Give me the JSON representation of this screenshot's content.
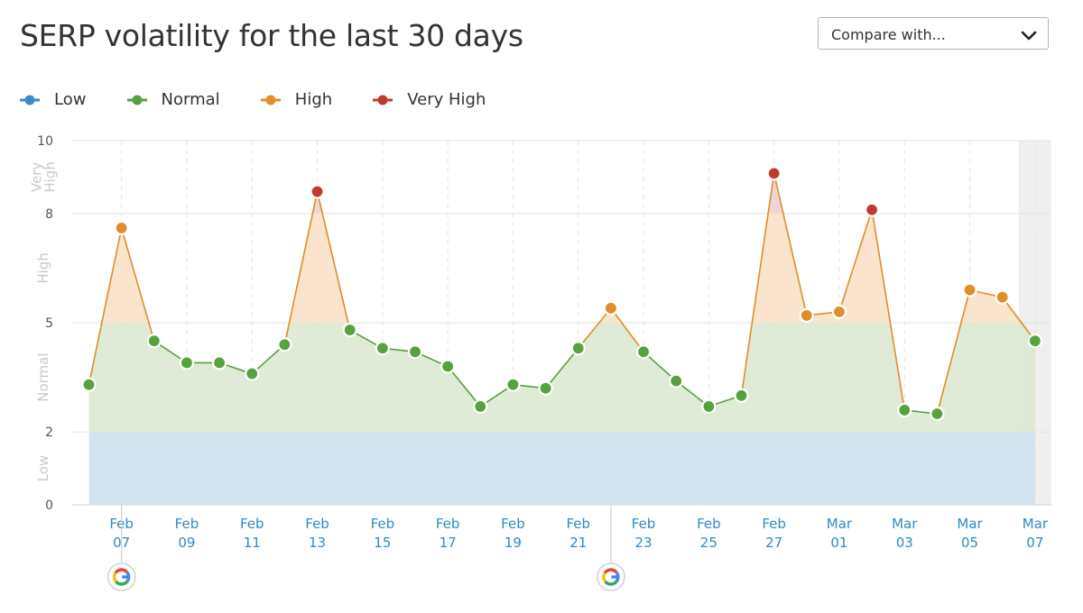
{
  "header": {
    "title": "SERP volatility for the last 30 days",
    "compare_label": "Compare with..."
  },
  "legend": [
    {
      "label": "Low",
      "color": "#3a8bc8"
    },
    {
      "label": "Normal",
      "color": "#57a13f"
    },
    {
      "label": "High",
      "color": "#e08d2a"
    },
    {
      "label": "Very High",
      "color": "#bf3b2f"
    }
  ],
  "zones": [
    {
      "label": "Low",
      "from": 0,
      "to": 2,
      "color": "#d3e4f1"
    },
    {
      "label": "Normal",
      "from": 2,
      "to": 5,
      "color": "#dce9d2"
    },
    {
      "label": "High",
      "from": 5,
      "to": 8,
      "color": "#f9e1c8"
    },
    {
      "label": "Very\nHigh",
      "from": 8,
      "to": 10,
      "color": "#f0cfcf"
    }
  ],
  "chart_data": {
    "type": "area",
    "title": "SERP volatility for the last 30 days",
    "ylim": [
      0,
      10
    ],
    "yticks": [
      0,
      2,
      5,
      8,
      10
    ],
    "x": [
      "Feb 06",
      "Feb 07",
      "Feb 08",
      "Feb 09",
      "Feb 10",
      "Feb 11",
      "Feb 12",
      "Feb 13",
      "Feb 14",
      "Feb 15",
      "Feb 16",
      "Feb 17",
      "Feb 18",
      "Feb 19",
      "Feb 20",
      "Feb 21",
      "Feb 22",
      "Feb 23",
      "Feb 24",
      "Feb 25",
      "Feb 26",
      "Feb 27",
      "Feb 28",
      "Mar 01",
      "Mar 02",
      "Mar 03",
      "Mar 04",
      "Mar 05",
      "Mar 06",
      "Mar 07"
    ],
    "series": [
      {
        "values": [
          3.3,
          7.6,
          4.5,
          3.9,
          3.9,
          3.6,
          4.4,
          8.6,
          4.8,
          4.3,
          4.2,
          3.8,
          2.7,
          3.3,
          3.2,
          4.3,
          5.4,
          4.2,
          3.4,
          2.7,
          3.0,
          9.1,
          5.2,
          5.3,
          8.1,
          2.6,
          2.5,
          5.9,
          5.7,
          4.5
        ]
      }
    ],
    "xtick_labels": [
      {
        "x": "Feb 07",
        "line1": "Feb",
        "line2": "07"
      },
      {
        "x": "Feb 09",
        "line1": "Feb",
        "line2": "09"
      },
      {
        "x": "Feb 11",
        "line1": "Feb",
        "line2": "11"
      },
      {
        "x": "Feb 13",
        "line1": "Feb",
        "line2": "13"
      },
      {
        "x": "Feb 15",
        "line1": "Feb",
        "line2": "15"
      },
      {
        "x": "Feb 17",
        "line1": "Feb",
        "line2": "17"
      },
      {
        "x": "Feb 19",
        "line1": "Feb",
        "line2": "19"
      },
      {
        "x": "Feb 21",
        "line1": "Feb",
        "line2": "21"
      },
      {
        "x": "Feb 23",
        "line1": "Feb",
        "line2": "23"
      },
      {
        "x": "Feb 25",
        "line1": "Feb",
        "line2": "25"
      },
      {
        "x": "Feb 27",
        "line1": "Feb",
        "line2": "27"
      },
      {
        "x": "Mar 01",
        "line1": "Mar",
        "line2": "01"
      },
      {
        "x": "Mar 03",
        "line1": "Mar",
        "line2": "03"
      },
      {
        "x": "Mar 05",
        "line1": "Mar",
        "line2": "05"
      },
      {
        "x": "Mar 07",
        "line1": "Mar",
        "line2": "07"
      }
    ],
    "google_update_markers": [
      "Feb 07",
      "Feb 22"
    ],
    "highlighted_day": "Mar 07",
    "grid": true,
    "legend_position": "top-left"
  },
  "colors": {
    "level_low": "#3a8bc8",
    "level_normal": "#57a13f",
    "level_high": "#e08d2a",
    "level_very_high": "#bf3b2f",
    "axis_label": "#2d8bc6",
    "zone_label": "#c8c8c8"
  }
}
